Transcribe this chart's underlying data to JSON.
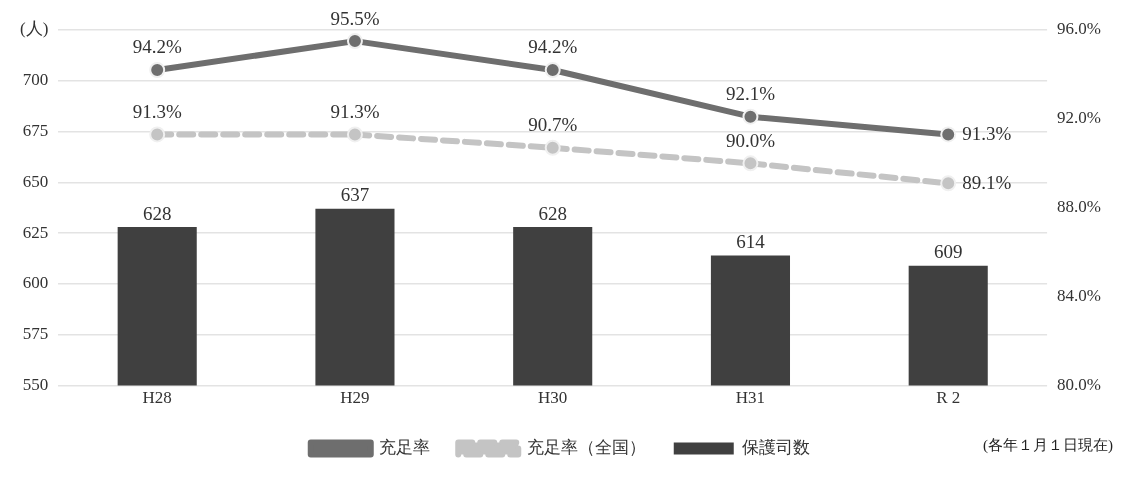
{
  "chart_data": {
    "type": "bar",
    "categories": [
      "H28",
      "H29",
      "H30",
      "H31",
      "R 2"
    ],
    "series": [
      {
        "name": "保護司数",
        "color": "#404040",
        "values": [
          628,
          637,
          628,
          614,
          609
        ],
        "value_labels": [
          "628",
          "637",
          "628",
          "614",
          "609"
        ]
      },
      {
        "name": "充足率",
        "type": "line",
        "axis": "y2",
        "color": "#6e6e6e",
        "marker": "circle",
        "line_style": "solid",
        "values": [
          94.2,
          95.5,
          94.2,
          92.1,
          91.3
        ],
        "value_labels": [
          "94.2%",
          "95.5%",
          "94.2%",
          "92.1%",
          "91.3%"
        ]
      },
      {
        "name": "充足率（全国）",
        "type": "line",
        "axis": "y2",
        "color": "#c4c4c4",
        "marker": "circle",
        "line_style": "dashed",
        "values": [
          91.3,
          91.3,
          90.7,
          90.0,
          89.1
        ],
        "value_labels": [
          "91.3%",
          "91.3%",
          "90.7%",
          "90.0%",
          "89.1%"
        ]
      }
    ],
    "ylim": [
      550,
      725
    ],
    "yticks": [
      550,
      575,
      600,
      625,
      650,
      675,
      700,
      {
        "value": 725,
        "label": "(人)"
      }
    ],
    "y2lim": [
      80,
      96
    ],
    "y2ticks": [
      {
        "value": 80,
        "label": "80.0%"
      },
      {
        "value": 84,
        "label": "84.0%"
      },
      {
        "value": 88,
        "label": "88.0%"
      },
      {
        "value": 92,
        "label": "92.0%"
      },
      {
        "value": 96,
        "label": "96.0%"
      }
    ],
    "grid": "y",
    "legend": "bottom",
    "annotations": [
      "(各年１月１日現在)"
    ]
  }
}
